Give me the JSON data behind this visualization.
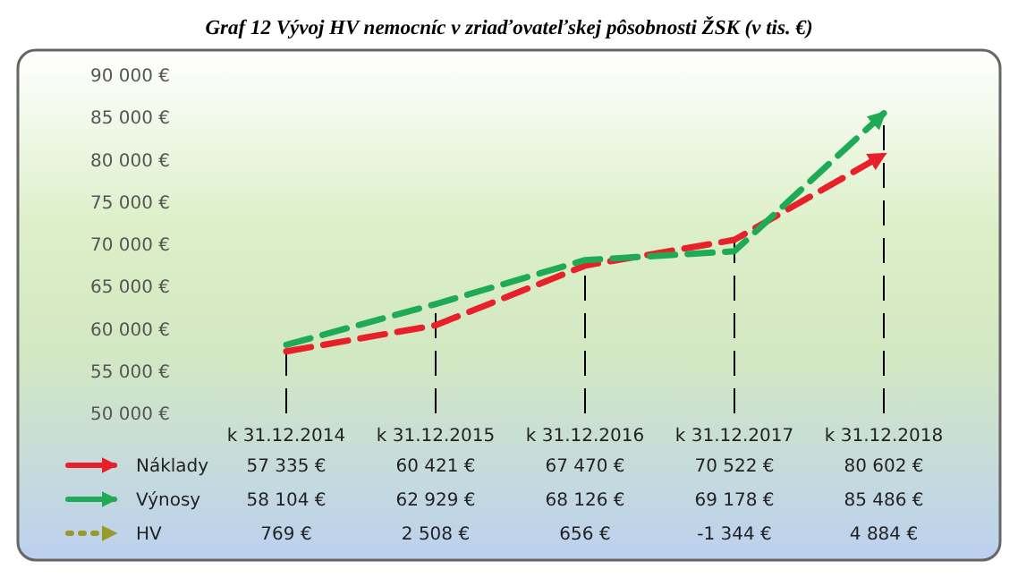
{
  "chart_data": {
    "type": "line",
    "title": "Graf 12 Vývoj HV nemocníc v zriaďovateľskej pôsobnosti ŽSK (v tis. €)",
    "categories": [
      "k 31.12.2014",
      "k 31.12.2015",
      "k 31.12.2016",
      "k 31.12.2017",
      "k 31.12.2018"
    ],
    "series": [
      {
        "name": "Náklady",
        "color": "#e8202a",
        "line_style": "dashed",
        "values": [
          57335,
          60421,
          67470,
          70522,
          80602
        ],
        "value_labels": [
          "57 335 €",
          "60 421 €",
          "67 470 €",
          "70 522 €",
          "80 602 €"
        ]
      },
      {
        "name": "Výnosy",
        "color": "#1faa55",
        "line_style": "dashed",
        "values": [
          58104,
          62929,
          68126,
          69178,
          85486
        ],
        "value_labels": [
          "58 104 €",
          "62 929 €",
          "68 126 €",
          "69 178 €",
          "85 486 €"
        ]
      },
      {
        "name": "HV",
        "color": "#9a9a2a",
        "line_style": "dotted",
        "values": [
          null,
          null,
          null,
          null,
          null
        ],
        "value_labels": [
          "769 €",
          "2 508 €",
          "656 €",
          "-1 344 €",
          "4 884 €"
        ]
      }
    ],
    "ylim": [
      50000,
      90000
    ],
    "yticks": [
      {
        "value": 50000,
        "label": "50 000 €"
      },
      {
        "value": 55000,
        "label": "55 000 €"
      },
      {
        "value": 60000,
        "label": "60 000 €"
      },
      {
        "value": 65000,
        "label": "65 000 €"
      },
      {
        "value": 70000,
        "label": "70 000 €"
      },
      {
        "value": 75000,
        "label": "75 000 €"
      },
      {
        "value": 80000,
        "label": "80 000 €"
      },
      {
        "value": 85000,
        "label": "85 000 €"
      },
      {
        "value": 90000,
        "label": "90 000 €"
      }
    ],
    "ref_lines": [
      {
        "axis": "x",
        "value": "k 31.12.2014",
        "color": "#000000",
        "line_style": "dashed"
      },
      {
        "axis": "x",
        "value": "k 31.12.2015",
        "color": "#000000",
        "line_style": "dashed"
      },
      {
        "axis": "x",
        "value": "k 31.12.2016",
        "color": "#000000",
        "line_style": "dashed"
      },
      {
        "axis": "x",
        "value": "k 31.12.2017",
        "color": "#000000",
        "line_style": "dashed"
      },
      {
        "axis": "x",
        "value": "k 31.12.2018",
        "color": "#000000",
        "line_style": "dashed"
      }
    ],
    "legend": "bottom left",
    "marker": "none"
  }
}
